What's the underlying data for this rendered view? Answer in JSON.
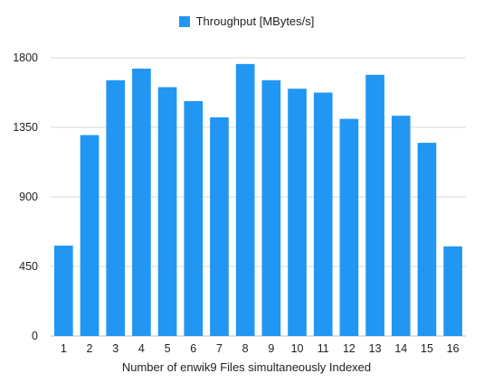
{
  "colors": {
    "bar": "#2196F3",
    "grid": "#d9d9d9",
    "axis": "#bdbdbd"
  },
  "chart_data": {
    "type": "bar",
    "categories": [
      "1",
      "2",
      "3",
      "4",
      "5",
      "6",
      "7",
      "8",
      "9",
      "10",
      "11",
      "12",
      "13",
      "14",
      "15",
      "16"
    ],
    "series": [
      {
        "name": "Throughput [MBytes/s]",
        "values": [
          585,
          1300,
          1655,
          1730,
          1610,
          1520,
          1415,
          1760,
          1655,
          1600,
          1575,
          1405,
          1690,
          1425,
          1250,
          580
        ]
      }
    ],
    "xlabel": "Number of enwik9 Files simultaneously Indexed",
    "ylabel": "",
    "ylim": [
      0,
      1800
    ],
    "yticks": [
      0,
      450,
      900,
      1350,
      1800
    ],
    "grid": true,
    "legend_position": "top-center"
  }
}
